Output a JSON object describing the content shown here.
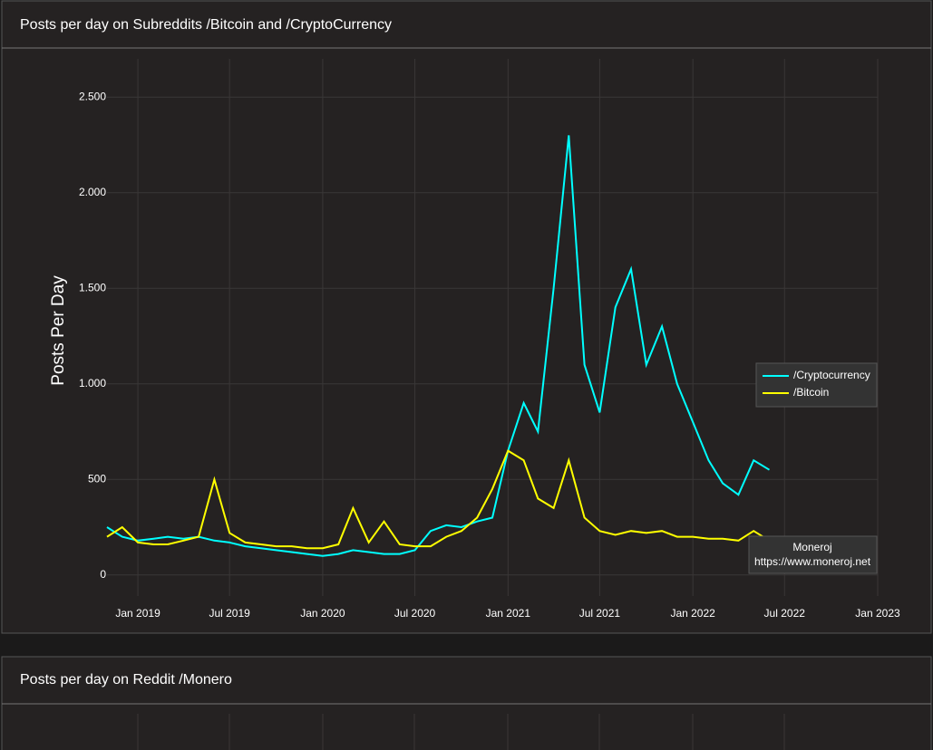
{
  "chart_data": {
    "type": "line",
    "title": "Posts per day on Subreddits /Bitcoin and /CryptoCurrency",
    "y_label": "Posts Per Day",
    "annotation": {
      "title": "Moneroj",
      "text": "https://www.moneroj.net"
    },
    "x": [
      "2018-11",
      "2018-12",
      "2019-01",
      "2019-02",
      "2019-03",
      "2019-04",
      "2019-05",
      "2019-06",
      "2019-07",
      "2019-08",
      "2019-09",
      "2019-10",
      "2019-11",
      "2019-12",
      "2020-01",
      "2020-02",
      "2020-03",
      "2020-04",
      "2020-05",
      "2020-06",
      "2020-07",
      "2020-08",
      "2020-09",
      "2020-10",
      "2020-11",
      "2020-12",
      "2021-01",
      "2021-02",
      "2021-03",
      "2021-04",
      "2021-05",
      "2021-06",
      "2021-07",
      "2021-08",
      "2021-09",
      "2021-10",
      "2021-11",
      "2021-12",
      "2022-01",
      "2022-02",
      "2022-03",
      "2022-04",
      "2022-05",
      "2022-06"
    ],
    "series": [
      {
        "name": "/Cryptocurrency",
        "color": "#00ffff",
        "values": [
          250,
          200,
          180,
          190,
          200,
          190,
          200,
          180,
          170,
          150,
          140,
          130,
          120,
          110,
          100,
          110,
          130,
          120,
          110,
          110,
          130,
          230,
          260,
          250,
          280,
          300,
          650,
          900,
          750,
          1500,
          2300,
          1100,
          850,
          1400,
          1600,
          1100,
          1300,
          1000,
          800,
          600,
          480,
          420,
          600,
          550
        ]
      },
      {
        "name": "/Bitcoin",
        "color": "#ffff00",
        "values": [
          200,
          250,
          170,
          160,
          160,
          180,
          200,
          500,
          220,
          170,
          160,
          150,
          150,
          140,
          140,
          160,
          350,
          170,
          280,
          160,
          150,
          150,
          200,
          230,
          300,
          450,
          650,
          600,
          400,
          350,
          600,
          300,
          230,
          210,
          230,
          220,
          230,
          200,
          200,
          190,
          190,
          180,
          230,
          180
        ]
      }
    ],
    "xlim": [
      "2018-11",
      "2023-01"
    ],
    "xticks": [
      {
        "value": "2019-01",
        "label": "Jan 2019"
      },
      {
        "value": "2019-07",
        "label": "Jul 2019"
      },
      {
        "value": "2020-01",
        "label": "Jan 2020"
      },
      {
        "value": "2020-07",
        "label": "Jul 2020"
      },
      {
        "value": "2021-01",
        "label": "Jan 2021"
      },
      {
        "value": "2021-07",
        "label": "Jul 2021"
      },
      {
        "value": "2022-01",
        "label": "Jan 2022"
      },
      {
        "value": "2022-07",
        "label": "Jul 2022"
      },
      {
        "value": "2023-01",
        "label": "Jan 2023"
      }
    ],
    "ylim": [
      -110,
      2700
    ],
    "yticks": [
      0,
      500,
      {
        "value": 1000,
        "label": "1.000"
      },
      {
        "value": 1500,
        "label": "1.500"
      },
      {
        "value": 2000,
        "label": "2.000"
      },
      {
        "value": 2500,
        "label": "2.500"
      }
    ],
    "grid": true,
    "legend": "right"
  },
  "second_panel": {
    "title": "Posts per day on Reddit /Monero"
  }
}
